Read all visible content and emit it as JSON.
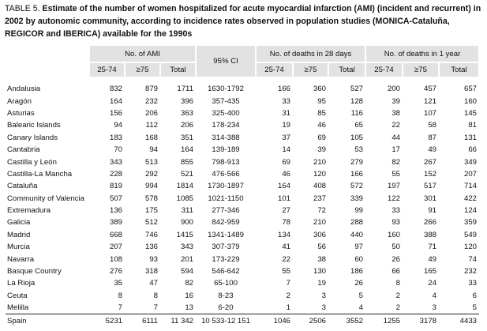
{
  "caption": {
    "label": "TABLE 5.",
    "text": "Estimate of the number of women hospitalized for acute myocardial infarction (AMI) (incident and recurrent) in 2002 by autonomic community, according to incidence rates observed in population studies (MONICA-Cataluña, REGICOR and IBERICA) available for the 1990s"
  },
  "table": {
    "groups": [
      "No. of AMI",
      "95% CI",
      "No. of deaths in 28 days",
      "No. of deaths in 1 year"
    ],
    "subheaders": [
      "25-74",
      "≥75",
      "Total"
    ],
    "rows": [
      [
        "Andalusia",
        "832",
        "879",
        "1711",
        "1630-1792",
        "166",
        "360",
        "527",
        "200",
        "457",
        "657"
      ],
      [
        "Aragón",
        "164",
        "232",
        "396",
        "357-435",
        "33",
        "95",
        "128",
        "39",
        "121",
        "160"
      ],
      [
        "Asturias",
        "156",
        "206",
        "363",
        "325-400",
        "31",
        "85",
        "116",
        "38",
        "107",
        "145"
      ],
      [
        "Balearic Islands",
        "94",
        "112",
        "206",
        "178-234",
        "19",
        "46",
        "65",
        "22",
        "58",
        "81"
      ],
      [
        "Canary Islands",
        "183",
        "168",
        "351",
        "314-388",
        "37",
        "69",
        "105",
        "44",
        "87",
        "131"
      ],
      [
        "Cantabria",
        "70",
        "94",
        "164",
        "139-189",
        "14",
        "39",
        "53",
        "17",
        "49",
        "66"
      ],
      [
        "Castilla y León",
        "343",
        "513",
        "855",
        "798-913",
        "69",
        "210",
        "279",
        "82",
        "267",
        "349"
      ],
      [
        "Castilla-La Mancha",
        "228",
        "292",
        "521",
        "476-566",
        "46",
        "120",
        "166",
        "55",
        "152",
        "207"
      ],
      [
        "Cataluña",
        "819",
        "994",
        "1814",
        "1730-1897",
        "164",
        "408",
        "572",
        "197",
        "517",
        "714"
      ],
      [
        "Community of Valencia",
        "507",
        "578",
        "1085",
        "1021-1150",
        "101",
        "237",
        "339",
        "122",
        "301",
        "422"
      ],
      [
        "Extremadura",
        "136",
        "175",
        "311",
        "277-346",
        "27",
        "72",
        "99",
        "33",
        "91",
        "124"
      ],
      [
        "Galicia",
        "389",
        "512",
        "900",
        "842-959",
        "78",
        "210",
        "288",
        "93",
        "266",
        "359"
      ],
      [
        "Madrid",
        "668",
        "746",
        "1415",
        "1341-1489",
        "134",
        "306",
        "440",
        "160",
        "388",
        "549"
      ],
      [
        "Murcia",
        "207",
        "136",
        "343",
        "307-379",
        "41",
        "56",
        "97",
        "50",
        "71",
        "120"
      ],
      [
        "Navarra",
        "108",
        "93",
        "201",
        "173-229",
        "22",
        "38",
        "60",
        "26",
        "49",
        "74"
      ],
      [
        "Basque Country",
        "276",
        "318",
        "594",
        "546-642",
        "55",
        "130",
        "186",
        "66",
        "165",
        "232"
      ],
      [
        "La Rioja",
        "35",
        "47",
        "82",
        "65-100",
        "7",
        "19",
        "26",
        "8",
        "24",
        "33"
      ],
      [
        "Ceuta",
        "8",
        "8",
        "16",
        "8-23",
        "2",
        "3",
        "5",
        "2",
        "4",
        "6"
      ],
      [
        "Melilla",
        "7",
        "7",
        "13",
        "6-20",
        "1",
        "3",
        "4",
        "2",
        "3",
        "5"
      ],
      [
        "Spain",
        "5231",
        "6111",
        "11 342",
        "10 533-12 151",
        "1046",
        "2506",
        "3552",
        "1255",
        "3178",
        "4433"
      ]
    ]
  }
}
